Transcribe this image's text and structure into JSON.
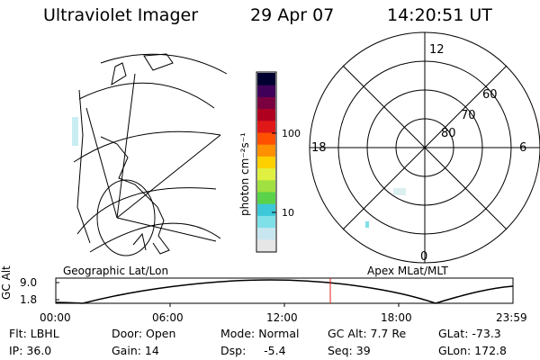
{
  "header": {
    "instrument": "Ultraviolet Imager",
    "date": "29 Apr 07",
    "time": "14:20:51 UT"
  },
  "colorbar": {
    "unit_label": "photon cm⁻²s⁻¹",
    "ticks": [
      "100",
      "10"
    ],
    "scale": "log",
    "colors": [
      "#e6e6e6",
      "#c8e6f0",
      "#7fe0e8",
      "#3cc8d8",
      "#5ad24a",
      "#a0e040",
      "#e0f040",
      "#ffd000",
      "#ff9000",
      "#ff5000",
      "#e01818",
      "#b00020",
      "#7a0040",
      "#40005a",
      "#000030"
    ]
  },
  "left_panel": {
    "label": "Geographic Lat/Lon",
    "background": "#ffffff"
  },
  "right_panel": {
    "label": "Apex MLat/MLT",
    "mlt_labels": {
      "top": "12",
      "left": "18",
      "right": "6",
      "bottom": "0"
    },
    "mlat_labels": [
      "60",
      "70",
      "80"
    ]
  },
  "altitude_plot": {
    "ylabel": "GC Alt",
    "y_ticks": [
      "9.0",
      "1.8"
    ],
    "x_ticks": [
      "00:00",
      "06:00",
      "12:00",
      "18:00",
      "23:59"
    ],
    "current_marker_color": "#e02020"
  },
  "footer": {
    "col1": [
      "Flt: LBHL",
      "IP: 36.0"
    ],
    "col2": [
      "Door: Open",
      "Gain: 14"
    ],
    "col3": [
      "Mode: Normal",
      "Dsp:     -5.4"
    ],
    "col4": [
      "GC Alt: 7.7 Re",
      "Seq: 39"
    ],
    "col5": [
      "GLat: -73.3",
      "GLon: 172.8"
    ]
  }
}
